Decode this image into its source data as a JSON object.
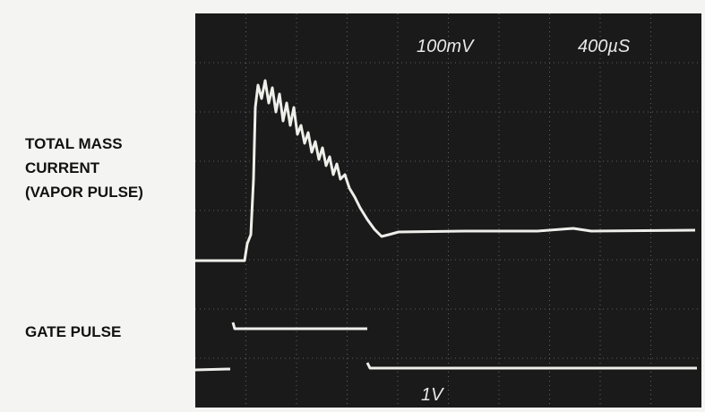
{
  "labels": {
    "vapor_pulse": [
      "TOTAL MASS",
      "CURRENT",
      "(VAPOR PULSE)"
    ],
    "gate_pulse": "GATE PULSE"
  },
  "screen": {
    "volts_per_div": "100mV",
    "time_per_div": "400µS",
    "gate_scale": "1V"
  }
}
